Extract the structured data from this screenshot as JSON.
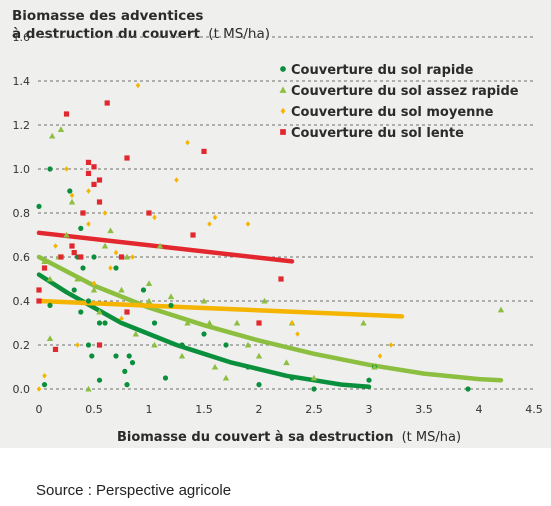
{
  "source": "Source : Perspective agricole",
  "chart_data": {
    "type": "scatter",
    "title_line1": "Biomasse des adventices",
    "title_line2": "à destruction du couvert",
    "title_unit": "(t MS/ha)",
    "xlabel": "Biomasse du couvert à sa destruction",
    "xlabel_unit": "(t MS/ha)",
    "xlim": [
      0,
      4.5
    ],
    "ylim": [
      0,
      1.6
    ],
    "x_ticks": [
      "0",
      "0.5",
      "1",
      "1.5",
      "2",
      "2.5",
      "3",
      "3.5",
      "4",
      "4.5"
    ],
    "y_ticks": [
      "0.0",
      "0.2",
      "0.4",
      "0.6",
      "0.8",
      "1.0",
      "1.2",
      "1.4",
      "1.6"
    ],
    "grid": "horizontal dashed",
    "legend_position": "top-right",
    "series": [
      {
        "name": "Couverture du sol rapide",
        "color": "#0a8f3c",
        "marker": "circle",
        "points": [
          [
            0.1,
            1.0
          ],
          [
            0.0,
            0.83
          ],
          [
            0.28,
            0.9
          ],
          [
            0.38,
            0.73
          ],
          [
            0.45,
            0.4
          ],
          [
            0.4,
            0.55
          ],
          [
            0.35,
            0.6
          ],
          [
            0.5,
            0.6
          ],
          [
            0.38,
            0.35
          ],
          [
            0.32,
            0.45
          ],
          [
            0.55,
            0.3
          ],
          [
            0.6,
            0.3
          ],
          [
            0.45,
            0.2
          ],
          [
            0.48,
            0.15
          ],
          [
            0.7,
            0.15
          ],
          [
            0.7,
            0.55
          ],
          [
            0.8,
            0.35
          ],
          [
            0.82,
            0.15
          ],
          [
            0.85,
            0.12
          ],
          [
            0.95,
            0.45
          ],
          [
            1.05,
            0.3
          ],
          [
            1.2,
            0.38
          ],
          [
            1.3,
            0.2
          ],
          [
            1.5,
            0.25
          ],
          [
            1.7,
            0.2
          ],
          [
            1.9,
            0.1
          ],
          [
            2.0,
            0.02
          ],
          [
            2.3,
            0.05
          ],
          [
            0.55,
            0.04
          ],
          [
            0.78,
            0.08
          ],
          [
            0.8,
            0.02
          ],
          [
            0.1,
            0.38
          ],
          [
            0.05,
            0.02
          ],
          [
            2.5,
            0.0
          ],
          [
            3.0,
            0.04
          ],
          [
            3.05,
            0.1
          ],
          [
            3.9,
            0.0
          ],
          [
            1.15,
            0.05
          ]
        ]
      },
      {
        "name": "Couverture du sol assez rapide",
        "color": "#8cbf3f",
        "marker": "triangle",
        "points": [
          [
            0.12,
            1.15
          ],
          [
            0.2,
            1.18
          ],
          [
            0.3,
            0.85
          ],
          [
            0.25,
            0.7
          ],
          [
            0.18,
            0.6
          ],
          [
            0.05,
            0.58
          ],
          [
            0.1,
            0.5
          ],
          [
            0.35,
            0.5
          ],
          [
            0.5,
            0.45
          ],
          [
            0.55,
            0.35
          ],
          [
            0.6,
            0.65
          ],
          [
            0.8,
            0.6
          ],
          [
            0.75,
            0.45
          ],
          [
            0.88,
            0.25
          ],
          [
            1.0,
            0.4
          ],
          [
            1.05,
            0.2
          ],
          [
            1.2,
            0.42
          ],
          [
            1.35,
            0.3
          ],
          [
            1.5,
            0.4
          ],
          [
            1.55,
            0.3
          ],
          [
            1.6,
            0.1
          ],
          [
            1.7,
            0.05
          ],
          [
            1.8,
            0.3
          ],
          [
            1.9,
            0.2
          ],
          [
            2.0,
            0.15
          ],
          [
            2.05,
            0.4
          ],
          [
            2.25,
            0.12
          ],
          [
            2.3,
            0.3
          ],
          [
            2.5,
            0.05
          ],
          [
            2.95,
            0.3
          ],
          [
            3.05,
            0.1
          ],
          [
            4.2,
            0.36
          ],
          [
            1.3,
            0.15
          ],
          [
            1.1,
            0.65
          ],
          [
            0.65,
            0.72
          ],
          [
            1.0,
            0.48
          ],
          [
            0.45,
            0.0
          ],
          [
            0.1,
            0.23
          ]
        ]
      },
      {
        "name": "Couverture du sol moyenne",
        "color": "#f5b400",
        "marker": "diamond",
        "points": [
          [
            0.0,
            0.0
          ],
          [
            0.05,
            0.06
          ],
          [
            0.25,
            1.0
          ],
          [
            0.3,
            0.88
          ],
          [
            0.45,
            0.9
          ],
          [
            0.45,
            0.75
          ],
          [
            0.6,
            0.8
          ],
          [
            0.65,
            0.55
          ],
          [
            0.7,
            0.62
          ],
          [
            0.5,
            0.48
          ],
          [
            0.85,
            0.6
          ],
          [
            0.9,
            1.38
          ],
          [
            1.05,
            0.78
          ],
          [
            1.25,
            0.95
          ],
          [
            1.35,
            1.12
          ],
          [
            1.55,
            0.75
          ],
          [
            1.6,
            0.78
          ],
          [
            1.9,
            0.75
          ],
          [
            2.3,
            0.3
          ],
          [
            2.35,
            0.25
          ],
          [
            3.1,
            0.15
          ],
          [
            3.2,
            0.2
          ],
          [
            0.35,
            0.2
          ],
          [
            0.15,
            0.65
          ],
          [
            0.75,
            0.32
          ]
        ]
      },
      {
        "name": "Couverture du sol lente",
        "color": "#e2282e",
        "marker": "square",
        "points": [
          [
            0.0,
            0.45
          ],
          [
            0.0,
            0.4
          ],
          [
            0.05,
            0.55
          ],
          [
            0.15,
            0.18
          ],
          [
            0.25,
            1.25
          ],
          [
            0.38,
            0.6
          ],
          [
            0.32,
            0.62
          ],
          [
            0.4,
            0.8
          ],
          [
            0.45,
            0.98
          ],
          [
            0.5,
            1.01
          ],
          [
            0.45,
            1.03
          ],
          [
            0.5,
            0.93
          ],
          [
            0.55,
            0.95
          ],
          [
            0.55,
            0.85
          ],
          [
            0.62,
            1.3
          ],
          [
            0.8,
            1.05
          ],
          [
            0.75,
            0.6
          ],
          [
            0.8,
            0.35
          ],
          [
            0.3,
            0.65
          ],
          [
            1.0,
            0.8
          ],
          [
            1.4,
            0.7
          ],
          [
            1.5,
            1.08
          ],
          [
            2.0,
            0.3
          ],
          [
            2.2,
            0.5
          ],
          [
            0.2,
            0.6
          ],
          [
            0.55,
            0.2
          ]
        ]
      }
    ],
    "trend_lines": [
      {
        "series": "Couverture du sol rapide",
        "color": "#0a8f3c",
        "x": [
          0.0,
          0.25,
          0.5,
          0.75,
          1.0,
          1.25,
          1.5,
          1.75,
          2.0,
          2.25,
          2.5,
          2.75,
          3.0
        ],
        "y": [
          0.52,
          0.44,
          0.37,
          0.3,
          0.25,
          0.2,
          0.16,
          0.12,
          0.09,
          0.06,
          0.04,
          0.02,
          0.01
        ]
      },
      {
        "series": "Couverture du sol assez rapide",
        "color": "#8cbf3f",
        "x": [
          0.0,
          0.5,
          1.0,
          1.5,
          2.0,
          2.5,
          3.0,
          3.5,
          4.0,
          4.2
        ],
        "y": [
          0.6,
          0.47,
          0.37,
          0.29,
          0.22,
          0.16,
          0.11,
          0.07,
          0.045,
          0.04
        ]
      },
      {
        "series": "Couverture du sol moyenne",
        "color": "#f5b400",
        "x": [
          0.0,
          3.3
        ],
        "y": [
          0.4,
          0.33
        ]
      },
      {
        "series": "Couverture du sol lente",
        "color": "#e2282e",
        "x": [
          0.0,
          2.3
        ],
        "y": [
          0.71,
          0.58
        ]
      }
    ]
  }
}
